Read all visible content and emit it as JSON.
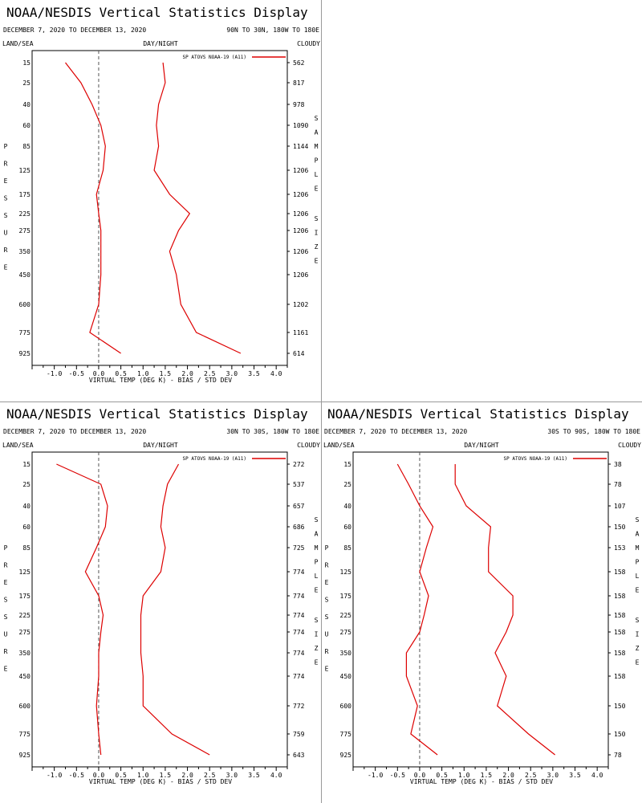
{
  "header": {
    "title": "NOAA/NESDIS Vertical Statistics Display",
    "date_range": "DECEMBER 7, 2020 TO DECEMBER 13, 2020",
    "left_label": "LAND/SEA",
    "center_label": "DAY/NIGHT",
    "right_label": "CLOUDY",
    "xlabel": "VIRTUAL TEMP (DEG K) - BIAS / STD DEV",
    "pressure_word": "PRESSURE",
    "sample_word": "SAMPLE",
    "size_word": "SIZE"
  },
  "colors": {
    "series": "#dd0000",
    "zero_line": "#555555",
    "axis": "#000000"
  },
  "chart_data": [
    {
      "type": "line",
      "region": "90N TO 30N, 180W TO 180E",
      "legend": "SP ATOVS NOAA-19 (A11)",
      "x_ticks": [
        "-1.0",
        "-0.5",
        "0.0",
        "0.5",
        "1.0",
        "1.5",
        "2.0",
        "2.5",
        "3.0",
        "3.5",
        "4.0"
      ],
      "xlim": [
        -1.5,
        4.25
      ],
      "pressure_levels": [
        15,
        25,
        40,
        60,
        85,
        125,
        175,
        225,
        275,
        350,
        450,
        600,
        775,
        925
      ],
      "sample_size": [
        "562",
        "817",
        "978",
        "1090",
        "1144",
        "1206",
        "1206",
        "1206",
        "1206",
        "1206",
        "1206",
        "1202",
        "1161",
        "614"
      ],
      "series": [
        {
          "name": "bias",
          "values": [
            -0.75,
            -0.4,
            -0.15,
            0.05,
            0.15,
            0.1,
            -0.05,
            0.0,
            0.05,
            0.05,
            0.05,
            0.0,
            -0.2,
            0.5
          ]
        },
        {
          "name": "std dev",
          "values": [
            1.45,
            1.5,
            1.35,
            1.3,
            1.35,
            1.25,
            1.6,
            2.05,
            1.8,
            1.6,
            1.75,
            1.85,
            2.2,
            3.2
          ]
        }
      ]
    },
    {
      "type": "line",
      "region": "30N TO 30S, 180W TO 180E",
      "legend": "SP ATOVS NOAA-19 (A11)",
      "x_ticks": [
        "-1.0",
        "-0.5",
        "0.0",
        "0.5",
        "1.0",
        "1.5",
        "2.0",
        "2.5",
        "3.0",
        "3.5",
        "4.0"
      ],
      "xlim": [
        -1.5,
        4.25
      ],
      "pressure_levels": [
        15,
        25,
        40,
        60,
        85,
        125,
        175,
        225,
        275,
        350,
        450,
        600,
        775,
        925
      ],
      "sample_size": [
        "272",
        "537",
        "657",
        "686",
        "725",
        "774",
        "774",
        "774",
        "774",
        "774",
        "774",
        "772",
        "759",
        "643"
      ],
      "series": [
        {
          "name": "bias",
          "values": [
            -0.95,
            0.05,
            0.2,
            0.15,
            -0.05,
            -0.3,
            0.0,
            0.1,
            0.05,
            0.0,
            0.0,
            -0.05,
            0.0,
            0.05
          ]
        },
        {
          "name": "std dev",
          "values": [
            1.8,
            1.55,
            1.45,
            1.4,
            1.5,
            1.4,
            1.0,
            0.95,
            0.95,
            0.95,
            1.0,
            1.0,
            1.65,
            2.5
          ]
        }
      ]
    },
    {
      "type": "line",
      "region": "30S TO 90S, 180W TO 180E",
      "legend": "SP ATOVS NOAA-19 (A11)",
      "x_ticks": [
        "-1.0",
        "-0.5",
        "0.0",
        "0.5",
        "1.0",
        "1.5",
        "2.0",
        "2.5",
        "3.0",
        "3.5",
        "4.0"
      ],
      "xlim": [
        -1.5,
        4.25
      ],
      "pressure_levels": [
        15,
        25,
        40,
        60,
        85,
        125,
        175,
        225,
        275,
        350,
        450,
        600,
        775,
        925
      ],
      "sample_size": [
        "38",
        "78",
        "107",
        "150",
        "153",
        "158",
        "158",
        "158",
        "158",
        "158",
        "158",
        "150",
        "150",
        "78"
      ],
      "series": [
        {
          "name": "bias",
          "values": [
            -0.5,
            -0.25,
            0.0,
            0.3,
            0.15,
            0.0,
            0.2,
            0.1,
            0.0,
            -0.3,
            -0.3,
            -0.05,
            -0.2,
            0.4
          ]
        },
        {
          "name": "std dev",
          "values": [
            0.8,
            0.8,
            1.05,
            1.6,
            1.55,
            1.55,
            2.1,
            2.1,
            1.95,
            1.7,
            1.95,
            1.75,
            2.45,
            3.05
          ]
        }
      ]
    }
  ]
}
